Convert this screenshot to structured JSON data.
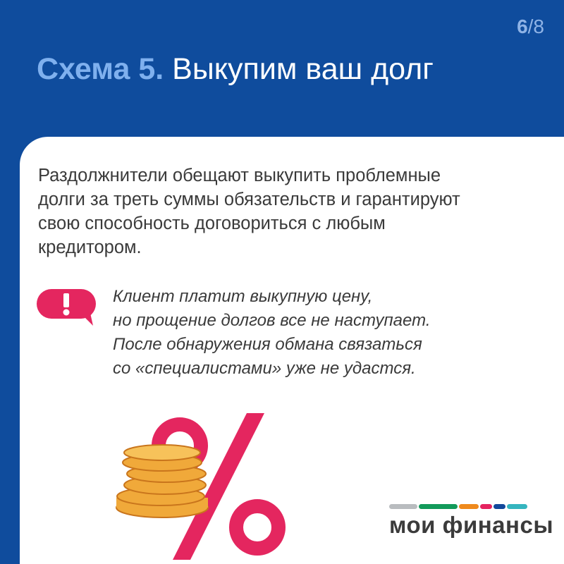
{
  "header": {
    "page_current": "6",
    "page_total": "/8",
    "title_highlight": "Схема 5.",
    "title_rest": " Выкупим ваш долг"
  },
  "intro": [
    "Раздолжнители обещают выкупить проблемные",
    "долги за треть суммы обязательств и гарантируют",
    "свою способность договориться с любым",
    "кредитором."
  ],
  "warning": {
    "icon": "exclamation-speech-bubble-icon",
    "lines": [
      "Клиент платит выкупную цену,",
      "но прощение долгов все не наступает.",
      "После обнаружения обмана связаться",
      "со «специалистами» уже не удастся."
    ]
  },
  "illustration": {
    "icons": [
      "percent-sign-icon",
      "coin-stack-icon"
    ]
  },
  "logo": {
    "text": "мои финансы",
    "colors": [
      "#b9bcbf",
      "#129a5a",
      "#ef8a1c",
      "#e5235f",
      "#12489b",
      "#35b5bf"
    ]
  },
  "colors": {
    "background": "#0f4c9d",
    "accent_pink": "#e4265f",
    "highlight": "#7fb0ee"
  }
}
